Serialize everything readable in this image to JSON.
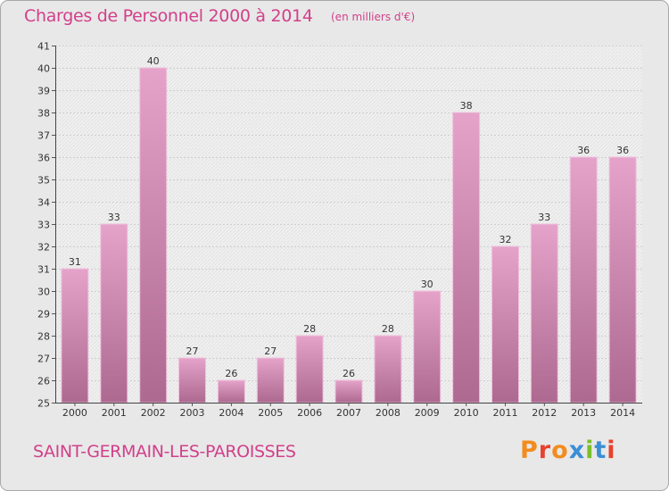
{
  "header": {
    "title": "Charges de Personnel 2000 à 2014",
    "subtitle": "(en milliers d'€)"
  },
  "footer": {
    "city": "SAINT-GERMAIN-LES-PAROISSES",
    "brand": "Proxiti"
  },
  "colors": {
    "accent": "#d2408a",
    "bar_top": "#e5a3ca",
    "bar_bottom": "#ad6990",
    "plot_bg": "#f0f0f0",
    "brand_letters": [
      "#f28c1e",
      "#e8412d",
      "#f28c1e",
      "#3a8fd6",
      "#7bbf2a",
      "#3a8fd6",
      "#e8412d"
    ]
  },
  "chart_data": {
    "type": "bar",
    "title": "Charges de Personnel 2000 à 2014",
    "subtitle": "(en milliers d'€)",
    "categories": [
      "2000",
      "2001",
      "2002",
      "2003",
      "2004",
      "2005",
      "2006",
      "2007",
      "2008",
      "2009",
      "2010",
      "2011",
      "2012",
      "2013",
      "2014"
    ],
    "values": [
      31,
      33,
      40,
      27,
      26,
      27,
      28,
      26,
      28,
      30,
      38,
      32,
      33,
      36,
      36
    ],
    "ylim": [
      25,
      41
    ],
    "yticks": [
      25,
      26,
      27,
      28,
      29,
      30,
      31,
      32,
      33,
      34,
      35,
      36,
      37,
      38,
      39,
      40,
      41
    ],
    "grid": true,
    "legend": "none"
  }
}
